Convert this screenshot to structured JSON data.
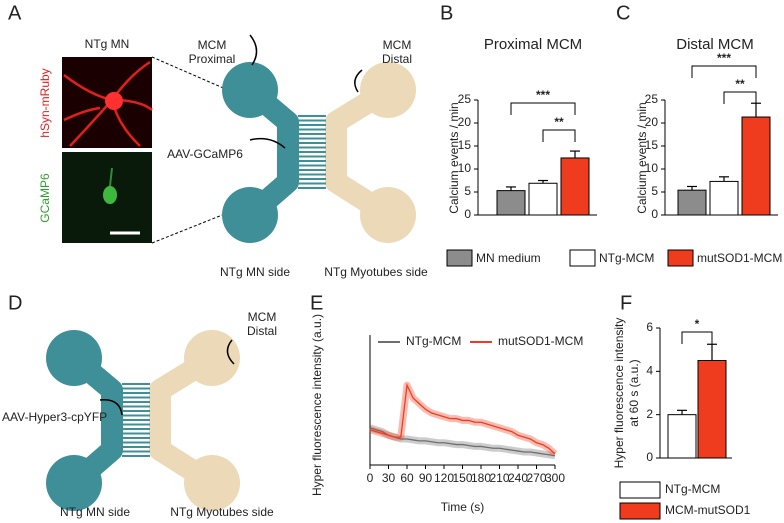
{
  "panel_labels": [
    "A",
    "B",
    "C",
    "D",
    "E",
    "F"
  ],
  "panel_a": {
    "image_title": "NTg MN",
    "red_label": "hSyn-mRuby",
    "green_label": "GCaMP6",
    "mcm_proximal": [
      "MCM",
      "Proximal"
    ],
    "mcm_distal": [
      "MCM",
      "Distal"
    ],
    "virus": "AAV-GCaMP6",
    "left_side": "NTg MN side",
    "right_side": "NTg Myotubes side"
  },
  "panel_d": {
    "mcm_distal": [
      "MCM",
      "Distal"
    ],
    "virus": "AAV-Hyper3-cpYFP",
    "left_side": "NTg MN side",
    "right_side": "NTg Myotubes side"
  },
  "bar_legend": [
    {
      "name": "MN medium",
      "color": "#8c8c8c"
    },
    {
      "name": "NTg-MCM",
      "color": "#ffffff"
    },
    {
      "name": "mutSOD1-MCM",
      "color": "#f03c1e"
    }
  ],
  "chart_data": [
    {
      "type": "bar",
      "title": "Proximal MCM",
      "ylabel": "Calcium events / min",
      "values": [
        5.3,
        6.9,
        12.4
      ],
      "errors": [
        0.8,
        0.6,
        1.5
      ],
      "ylim": [
        0,
        25
      ],
      "yticks": [
        0,
        5,
        10,
        15,
        20,
        25
      ],
      "significance": [
        "***",
        "**"
      ]
    },
    {
      "type": "bar",
      "title": "Distal MCM",
      "ylabel": "Calcium events / min",
      "values": [
        5.4,
        7.3,
        21.3
      ],
      "errors": [
        0.8,
        1.0,
        3.0
      ],
      "ylim": [
        0,
        25
      ],
      "yticks": [
        0,
        5,
        10,
        15,
        20,
        25
      ],
      "significance": [
        "***",
        "**"
      ]
    },
    {
      "type": "line",
      "ylabel": "Hyper fluorescence intensity (a.u.)",
      "xlabel": "Time (s)",
      "x": [
        0,
        10,
        20,
        30,
        40,
        50,
        60,
        70,
        80,
        90,
        100,
        110,
        120,
        130,
        140,
        150,
        160,
        170,
        180,
        190,
        200,
        210,
        220,
        230,
        240,
        250,
        260,
        270,
        280,
        290,
        300
      ],
      "xlim": [
        0,
        300
      ],
      "xticks": [
        0,
        30,
        60,
        90,
        120,
        150,
        180,
        210,
        240,
        270,
        300
      ],
      "ylim": [
        0,
        7
      ],
      "series": [
        {
          "name": "NTg-MCM",
          "color": "#6e6e6e",
          "values": [
            2.0,
            1.9,
            1.8,
            1.6,
            1.5,
            1.4,
            1.4,
            1.35,
            1.3,
            1.3,
            1.25,
            1.2,
            1.2,
            1.15,
            1.1,
            1.1,
            1.05,
            1.0,
            1.0,
            0.95,
            0.9,
            0.9,
            0.85,
            0.8,
            0.75,
            0.7,
            0.7,
            0.65,
            0.6,
            0.55,
            0.5
          ]
        },
        {
          "name": "mutSOD1-MCM",
          "color": "#f03c1e",
          "values": [
            1.9,
            1.8,
            1.7,
            1.6,
            1.5,
            1.5,
            4.3,
            3.6,
            3.3,
            3.0,
            2.8,
            2.7,
            2.6,
            2.5,
            2.5,
            2.4,
            2.4,
            2.3,
            2.3,
            2.2,
            2.1,
            2.0,
            1.9,
            1.8,
            1.6,
            1.5,
            1.4,
            1.2,
            1.1,
            0.9,
            0.6
          ]
        }
      ]
    },
    {
      "type": "bar",
      "ylabel": [
        "Hyper fluorescence intensity",
        "at 60 s (a.u.)"
      ],
      "ylim": [
        0,
        6
      ],
      "yticks": [
        0,
        2,
        4,
        6
      ],
      "significance": [
        "*"
      ],
      "series": [
        {
          "name": "NTg-MCM",
          "color": "#ffffff",
          "values": [
            2.0
          ],
          "errors": [
            0.2
          ]
        },
        {
          "name": "MCM-mutSOD1",
          "color": "#f03c1e",
          "values": [
            4.5
          ],
          "errors": [
            0.75
          ]
        }
      ]
    }
  ]
}
